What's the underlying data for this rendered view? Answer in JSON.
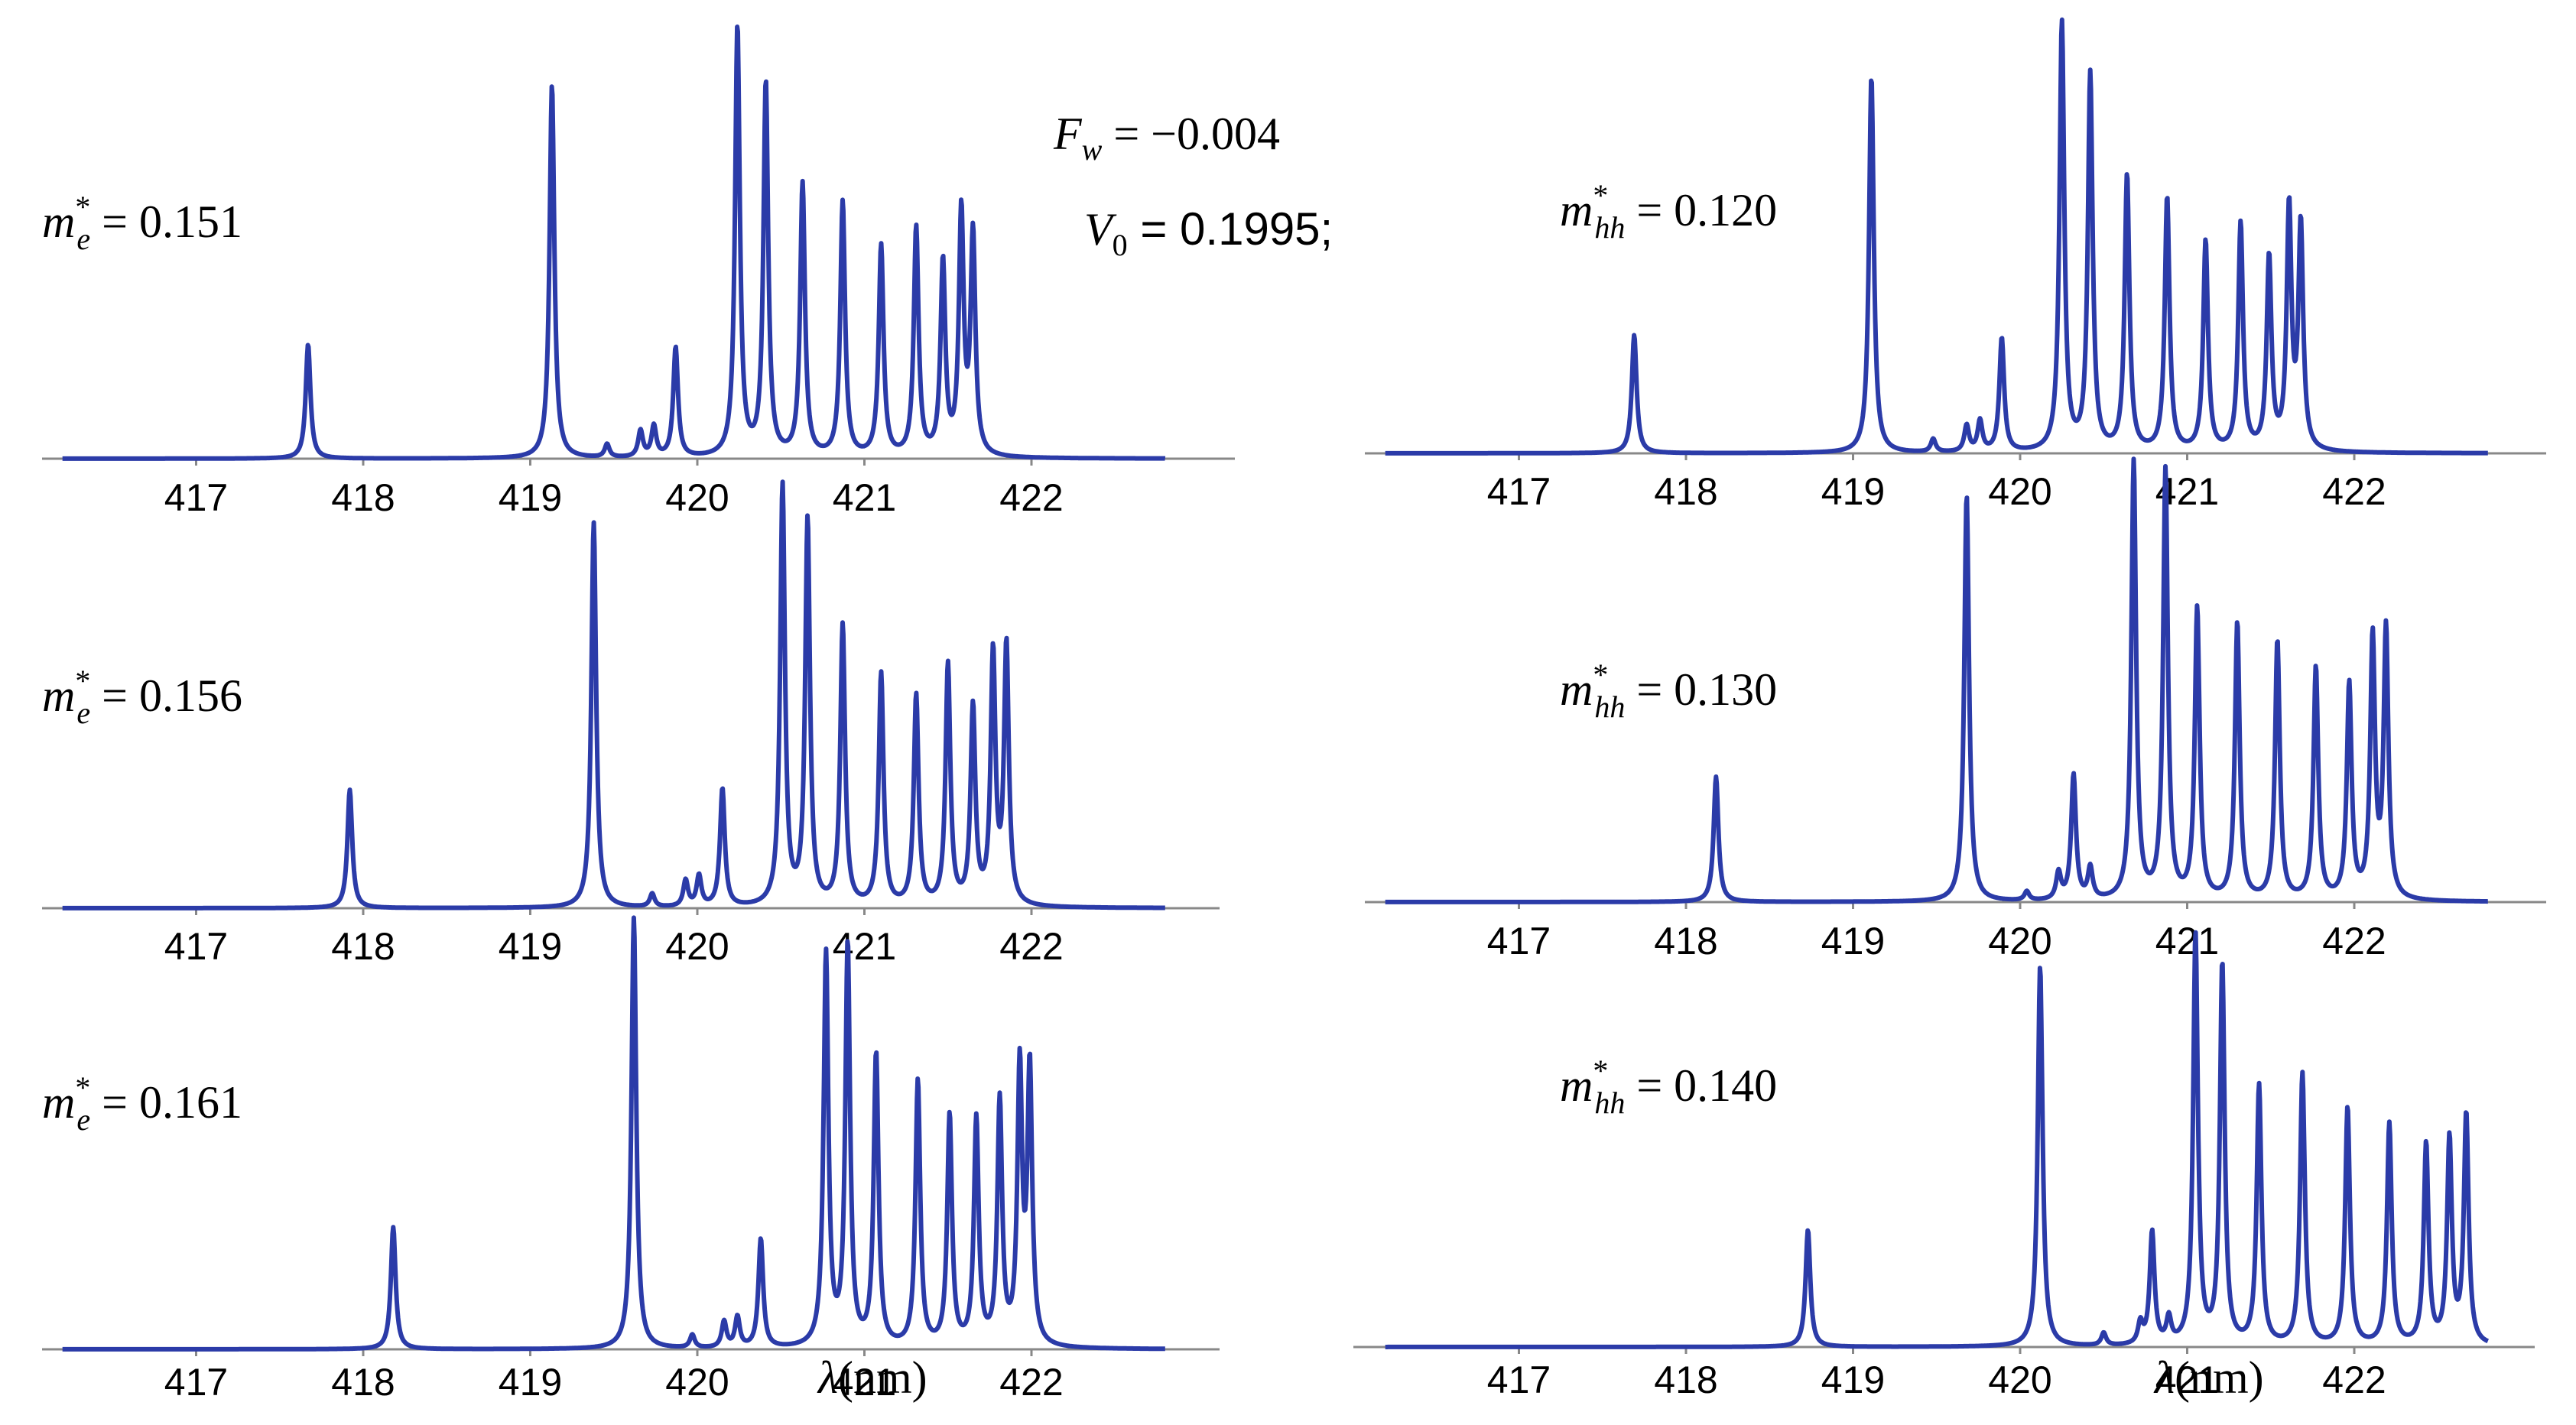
{
  "figure": {
    "param_fw": {
      "symbol": "F",
      "sub": "w",
      "rest": " = −0.004"
    },
    "param_v0": {
      "symbol": "V",
      "sub": "0",
      "rest": " = 0.1995;"
    },
    "xlabel": {
      "symbol": "λ",
      "rest": "(nm)"
    }
  },
  "chart_data": [
    {
      "type": "line",
      "panel": "left-1",
      "label": {
        "symbol": "m",
        "sup": "*",
        "sub": "e",
        "rest": " = 0.151"
      },
      "xlim": [
        416.2,
        422.8
      ],
      "ylim": [
        0,
        1
      ],
      "xticks": [
        417,
        418,
        419,
        420,
        421,
        422
      ],
      "series_color": "#2b3ba8",
      "peaks": [
        [
          417.67,
          0.26
        ],
        [
          419.13,
          0.85
        ],
        [
          419.46,
          0.03
        ],
        [
          419.66,
          0.06
        ],
        [
          419.74,
          0.07
        ],
        [
          419.87,
          0.25
        ],
        [
          420.24,
          0.98
        ],
        [
          420.41,
          0.85
        ],
        [
          420.63,
          0.62
        ],
        [
          420.87,
          0.58
        ],
        [
          421.1,
          0.48
        ],
        [
          421.31,
          0.52
        ],
        [
          421.47,
          0.44
        ],
        [
          421.58,
          0.55
        ],
        [
          421.65,
          0.5
        ]
      ]
    },
    {
      "type": "line",
      "panel": "left-2",
      "label": {
        "symbol": "m",
        "sup": "*",
        "sub": "e",
        "rest": " = 0.156"
      },
      "xlim": [
        416.2,
        422.8
      ],
      "ylim": [
        0,
        1
      ],
      "xticks": [
        417,
        418,
        419,
        420,
        421,
        422
      ],
      "series_color": "#2b3ba8",
      "peaks": [
        [
          417.92,
          0.27
        ],
        [
          419.38,
          0.88
        ],
        [
          419.73,
          0.03
        ],
        [
          419.93,
          0.06
        ],
        [
          420.01,
          0.07
        ],
        [
          420.15,
          0.27
        ],
        [
          420.51,
          0.96
        ],
        [
          420.66,
          0.88
        ],
        [
          420.87,
          0.64
        ],
        [
          421.1,
          0.53
        ],
        [
          421.31,
          0.48
        ],
        [
          421.5,
          0.55
        ],
        [
          421.65,
          0.45
        ],
        [
          421.77,
          0.57
        ],
        [
          421.85,
          0.59
        ]
      ]
    },
    {
      "type": "line",
      "panel": "left-3",
      "label": {
        "symbol": "m",
        "sup": "*",
        "sub": "e",
        "rest": " = 0.161"
      },
      "xlim": [
        416.2,
        422.8
      ],
      "ylim": [
        0,
        1
      ],
      "xticks": [
        417,
        418,
        419,
        420,
        421,
        422
      ],
      "series_color": "#2b3ba8",
      "peaks": [
        [
          418.18,
          0.28
        ],
        [
          419.62,
          0.99
        ],
        [
          419.97,
          0.03
        ],
        [
          420.16,
          0.06
        ],
        [
          420.24,
          0.07
        ],
        [
          420.38,
          0.25
        ],
        [
          420.77,
          0.9
        ],
        [
          420.9,
          0.92
        ],
        [
          421.07,
          0.67
        ],
        [
          421.32,
          0.61
        ],
        [
          421.51,
          0.53
        ],
        [
          421.67,
          0.52
        ],
        [
          421.81,
          0.56
        ],
        [
          421.93,
          0.63
        ],
        [
          421.99,
          0.63
        ]
      ]
    },
    {
      "type": "line",
      "panel": "right-1",
      "label": {
        "symbol": "m",
        "sup": "*",
        "sub": "hh",
        "rest": " = 0.120"
      },
      "xlim": [
        416.2,
        422.8
      ],
      "ylim": [
        0,
        1
      ],
      "xticks": [
        417,
        418,
        419,
        420,
        421,
        422
      ],
      "series_color": "#2b3ba8",
      "peaks": [
        [
          417.69,
          0.27
        ],
        [
          419.11,
          0.86
        ],
        [
          419.48,
          0.03
        ],
        [
          419.68,
          0.06
        ],
        [
          419.76,
          0.07
        ],
        [
          419.89,
          0.26
        ],
        [
          420.25,
          0.98
        ],
        [
          420.42,
          0.86
        ],
        [
          420.64,
          0.63
        ],
        [
          420.88,
          0.58
        ],
        [
          421.11,
          0.48
        ],
        [
          421.32,
          0.52
        ],
        [
          421.49,
          0.44
        ],
        [
          421.61,
          0.55
        ],
        [
          421.68,
          0.51
        ]
      ]
    },
    {
      "type": "line",
      "panel": "right-2",
      "label": {
        "symbol": "m",
        "sup": "*",
        "sub": "hh",
        "rest": " = 0.130"
      },
      "xlim": [
        416.2,
        422.8
      ],
      "ylim": [
        0,
        1
      ],
      "xticks": [
        417,
        418,
        419,
        420,
        421,
        422
      ],
      "series_color": "#2b3ba8",
      "peaks": [
        [
          418.18,
          0.28
        ],
        [
          419.68,
          0.91
        ],
        [
          420.04,
          0.02
        ],
        [
          420.23,
          0.06
        ],
        [
          420.32,
          0.28
        ],
        [
          420.42,
          0.07
        ],
        [
          420.68,
          0.98
        ],
        [
          420.87,
          0.96
        ],
        [
          421.06,
          0.65
        ],
        [
          421.3,
          0.62
        ],
        [
          421.54,
          0.58
        ],
        [
          421.77,
          0.52
        ],
        [
          421.97,
          0.48
        ],
        [
          422.11,
          0.58
        ],
        [
          422.19,
          0.6
        ]
      ]
    },
    {
      "type": "line",
      "panel": "right-3",
      "label": {
        "symbol": "m",
        "sup": "*",
        "sub": "hh",
        "rest": " = 0.140"
      },
      "xlim": [
        416.2,
        422.8
      ],
      "ylim": [
        0,
        1
      ],
      "xticks": [
        417,
        418,
        419,
        420,
        421,
        422
      ],
      "series_color": "#2b3ba8",
      "peaks": [
        [
          418.73,
          0.28
        ],
        [
          420.12,
          0.91
        ],
        [
          420.5,
          0.03
        ],
        [
          420.72,
          0.05
        ],
        [
          420.79,
          0.27
        ],
        [
          420.89,
          0.06
        ],
        [
          421.05,
          0.98
        ],
        [
          421.21,
          0.91
        ],
        [
          421.43,
          0.62
        ],
        [
          421.69,
          0.65
        ],
        [
          421.96,
          0.57
        ],
        [
          422.21,
          0.53
        ],
        [
          422.43,
          0.48
        ],
        [
          422.57,
          0.49
        ],
        [
          422.67,
          0.55
        ]
      ]
    }
  ]
}
